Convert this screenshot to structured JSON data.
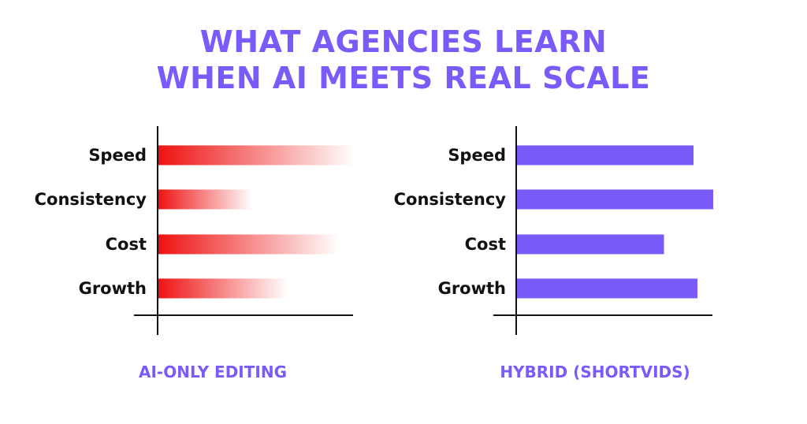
{
  "title_lines": [
    "WHAT AGENCIES LEARN",
    "WHEN AI MEETS REAL SCALE"
  ],
  "colors": {
    "accent": "#7a5af8",
    "red": "#ee1111",
    "text": "#111111",
    "axis": "#111111"
  },
  "chart_data": [
    {
      "type": "bar",
      "orientation": "horizontal",
      "title": "AI-ONLY EDITING",
      "categories": [
        "Speed",
        "Consistency",
        "Cost",
        "Growth"
      ],
      "values": [
        100,
        48,
        92,
        66
      ],
      "xlim": [
        0,
        100
      ],
      "style": "gradient-fade",
      "color": "#ee1111",
      "grid": false,
      "legend": "none"
    },
    {
      "type": "bar",
      "orientation": "horizontal",
      "title": "HYBRID (SHORTVIDS)",
      "categories": [
        "Speed",
        "Consistency",
        "Cost",
        "Growth"
      ],
      "values": [
        90,
        100,
        75,
        92
      ],
      "xlim": [
        0,
        100
      ],
      "style": "solid",
      "color": "#7a5af8",
      "grid": false,
      "legend": "none"
    }
  ]
}
